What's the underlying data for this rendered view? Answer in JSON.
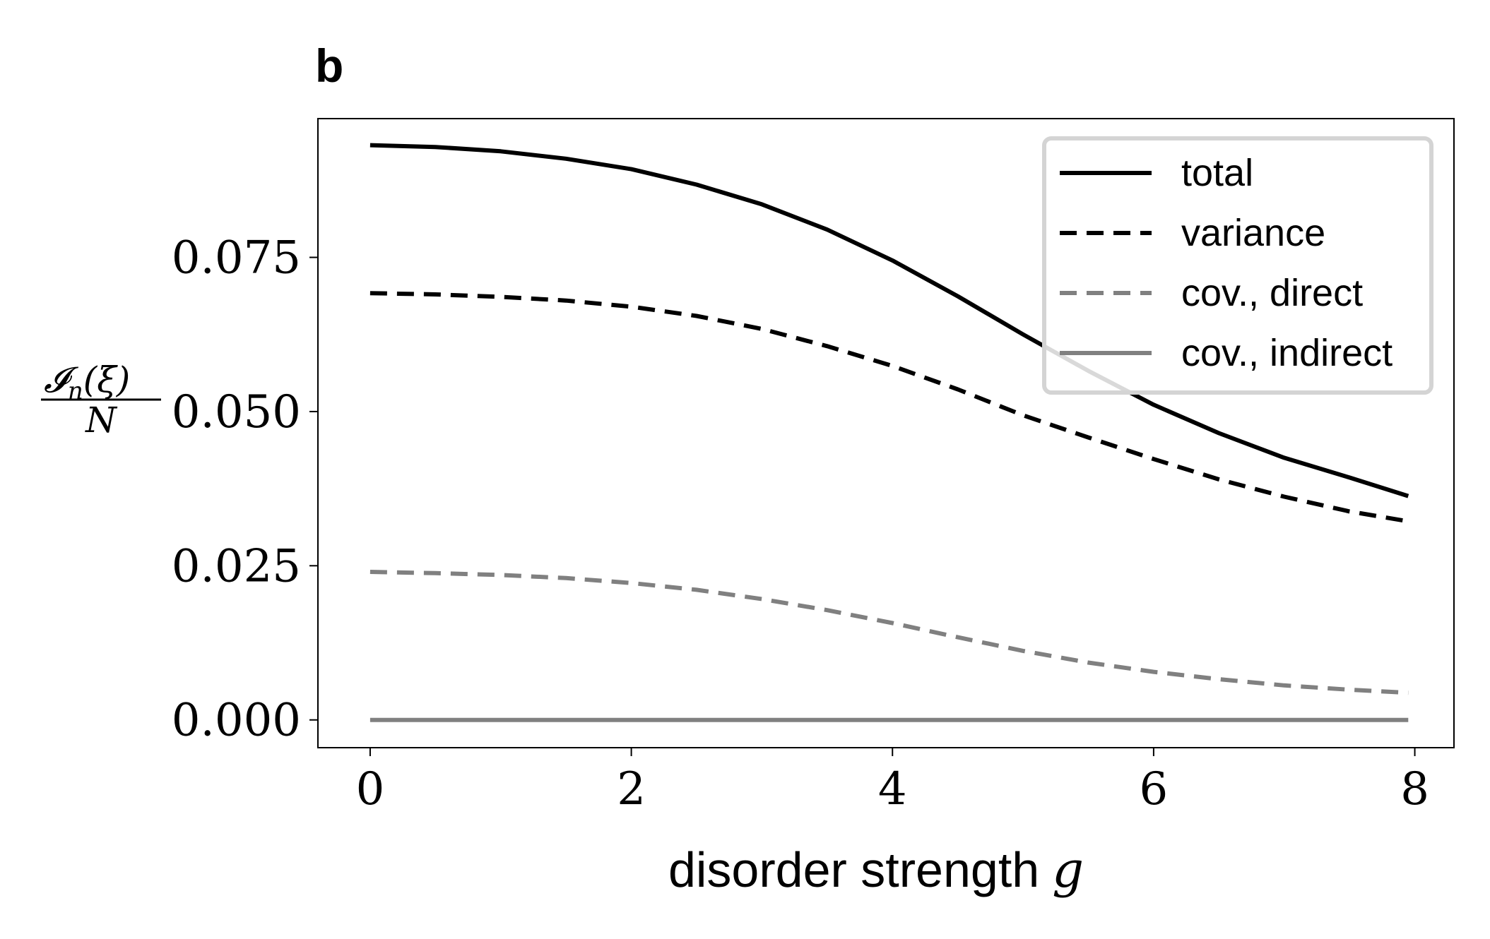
{
  "panel_label": "b",
  "chart_data": {
    "type": "line",
    "title": "",
    "xlabel": "disorder strength",
    "xlabel_symbol": "g",
    "ylabel": "I_n(ξ) / N",
    "ylabel_numerator": "𝓘",
    "ylabel_subscript": "n",
    "ylabel_argument": "(ξ)",
    "ylabel_denominator": "N",
    "xlim": [
      -0.4,
      8.3
    ],
    "ylim": [
      -0.0045,
      0.0975
    ],
    "xticks": [
      0,
      2,
      4,
      6,
      8
    ],
    "xtick_labels": [
      "0",
      "2",
      "4",
      "6",
      "8"
    ],
    "yticks": [
      0.0,
      0.025,
      0.05,
      0.075
    ],
    "ytick_labels": [
      "0.000",
      "0.025",
      "0.050",
      "0.075"
    ],
    "grid": false,
    "legend_position": "top-right",
    "x": [
      0,
      0.5,
      1,
      1.5,
      2,
      2.5,
      3,
      3.5,
      4,
      4.5,
      5,
      5.5,
      6,
      6.5,
      7,
      7.5,
      7.95
    ],
    "series": [
      {
        "name": "total",
        "style": "solid",
        "color": "#000000",
        "values": [
          0.0932,
          0.0929,
          0.0922,
          0.091,
          0.0893,
          0.0868,
          0.0836,
          0.0795,
          0.0745,
          0.0687,
          0.0625,
          0.0566,
          0.0511,
          0.0465,
          0.0425,
          0.0393,
          0.0363
        ]
      },
      {
        "name": "variance",
        "style": "dashed",
        "color": "#000000",
        "values": [
          0.0692,
          0.069,
          0.0686,
          0.068,
          0.067,
          0.0655,
          0.0634,
          0.0606,
          0.0574,
          0.0536,
          0.0494,
          0.0458,
          0.0423,
          0.039,
          0.0362,
          0.0338,
          0.0322
        ]
      },
      {
        "name": "cov., direct",
        "style": "dashed",
        "color": "#808080",
        "values": [
          0.024,
          0.0238,
          0.0235,
          0.023,
          0.0222,
          0.0211,
          0.0196,
          0.0178,
          0.0157,
          0.0134,
          0.0112,
          0.0093,
          0.0078,
          0.0066,
          0.0056,
          0.0049,
          0.0044
        ]
      },
      {
        "name": "cov., indirect",
        "style": "solid",
        "color": "#808080",
        "values": [
          0.0,
          0.0,
          0.0,
          0.0,
          0.0,
          0.0,
          0.0,
          0.0,
          0.0,
          0.0,
          0.0,
          0.0,
          0.0,
          0.0,
          0.0,
          0.0,
          0.0
        ]
      }
    ]
  }
}
